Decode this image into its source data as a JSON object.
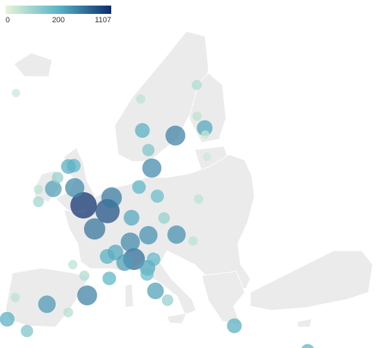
{
  "chart_data": {
    "type": "bubble-map",
    "color_scale": {
      "ticks": [
        0,
        200,
        1107
      ],
      "colors": [
        "#e5f5d6",
        "#5ab4c6",
        "#0b2e6e"
      ]
    },
    "bubbles": [
      {
        "lon": -0.1,
        "lat": 51.5,
        "value": 1107
      },
      {
        "lon": 2.35,
        "lat": 48.85,
        "value": 650
      },
      {
        "lon": 4.35,
        "lat": 50.85,
        "value": 900
      },
      {
        "lon": 4.9,
        "lat": 52.37,
        "value": 600
      },
      {
        "lon": -2.24,
        "lat": 53.48,
        "value": 500
      },
      {
        "lon": -6.26,
        "lat": 53.35,
        "value": 350
      },
      {
        "lon": -4.25,
        "lat": 55.86,
        "value": 250
      },
      {
        "lon": -3.19,
        "lat": 55.95,
        "value": 200
      },
      {
        "lon": -5.93,
        "lat": 54.6,
        "value": 120
      },
      {
        "lon": -8.47,
        "lat": 51.9,
        "value": 100
      },
      {
        "lon": -9.05,
        "lat": 53.27,
        "value": 60
      },
      {
        "lon": 8.68,
        "lat": 50.11,
        "value": 300
      },
      {
        "lon": 11.58,
        "lat": 48.14,
        "value": 450
      },
      {
        "lon": 8.54,
        "lat": 47.37,
        "value": 500
      },
      {
        "lon": 6.14,
        "lat": 46.2,
        "value": 300
      },
      {
        "lon": 9.19,
        "lat": 45.46,
        "value": 700
      },
      {
        "lon": 7.69,
        "lat": 45.07,
        "value": 350
      },
      {
        "lon": 11.34,
        "lat": 44.49,
        "value": 300
      },
      {
        "lon": 12.33,
        "lat": 45.44,
        "value": 200
      },
      {
        "lon": 11.25,
        "lat": 43.77,
        "value": 180
      },
      {
        "lon": 12.5,
        "lat": 41.9,
        "value": 350
      },
      {
        "lon": 14.27,
        "lat": 40.85,
        "value": 120
      },
      {
        "lon": 4.83,
        "lat": 45.76,
        "value": 250
      },
      {
        "lon": 5.37,
        "lat": 43.3,
        "value": 200
      },
      {
        "lon": 1.44,
        "lat": 43.6,
        "value": 80
      },
      {
        "lon": -0.58,
        "lat": 44.84,
        "value": 60
      },
      {
        "lon": 2.17,
        "lat": 41.39,
        "value": 550
      },
      {
        "lon": -3.7,
        "lat": 40.4,
        "value": 400
      },
      {
        "lon": -9.14,
        "lat": 38.72,
        "value": 250
      },
      {
        "lon": -8.61,
        "lat": 41.15,
        "value": 60
      },
      {
        "lon": -5.98,
        "lat": 37.39,
        "value": 150
      },
      {
        "lon": -0.38,
        "lat": 39.47,
        "value": 70
      },
      {
        "lon": 16.37,
        "lat": 48.21,
        "value": 450
      },
      {
        "lon": 14.42,
        "lat": 50.08,
        "value": 120
      },
      {
        "lon": 13.4,
        "lat": 52.52,
        "value": 180
      },
      {
        "lon": 9.99,
        "lat": 53.55,
        "value": 200
      },
      {
        "lon": 12.57,
        "lat": 55.68,
        "value": 500
      },
      {
        "lon": 10.75,
        "lat": 59.91,
        "value": 250
      },
      {
        "lon": 18.07,
        "lat": 59.33,
        "value": 550
      },
      {
        "lon": 11.97,
        "lat": 57.7,
        "value": 150
      },
      {
        "lon": 24.94,
        "lat": 60.17,
        "value": 300
      },
      {
        "lon": 23.76,
        "lat": 61.5,
        "value": 60
      },
      {
        "lon": 25.47,
        "lat": 65.01,
        "value": 80
      },
      {
        "lon": 10.4,
        "lat": 63.43,
        "value": 60
      },
      {
        "lon": -21.9,
        "lat": 64.1,
        "value": 40
      },
      {
        "lon": 23.7,
        "lat": 37.98,
        "value": 250
      },
      {
        "lon": 21.0,
        "lat": 52.2,
        "value": 60
      },
      {
        "lon": 19.04,
        "lat": 47.5,
        "value": 60
      },
      {
        "lon": 33.36,
        "lat": 35.17,
        "value": 200
      },
      {
        "lon": 24.75,
        "lat": 59.44,
        "value": 40
      },
      {
        "lon": 24.1,
        "lat": 56.95,
        "value": 40
      }
    ]
  }
}
